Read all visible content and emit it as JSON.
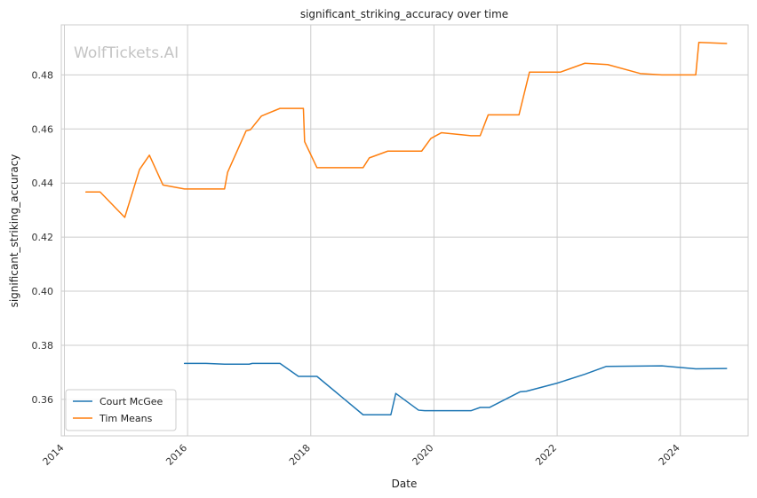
{
  "chart_data": {
    "type": "line",
    "title": "significant_striking_accuracy over time",
    "xlabel": "Date",
    "ylabel": "significant_striking_accuracy",
    "watermark": "WolfTickets.AI",
    "xlim": [
      2013.95,
      2025.1
    ],
    "ylim": [
      0.3465,
      0.4985
    ],
    "x_ticks": [
      2014,
      2016,
      2018,
      2020,
      2022,
      2024
    ],
    "x_tick_labels": [
      "2014",
      "2016",
      "2018",
      "2020",
      "2022",
      "2024"
    ],
    "y_ticks": [
      0.36,
      0.38,
      0.4,
      0.42,
      0.44,
      0.46,
      0.48
    ],
    "y_tick_labels": [
      "0.36",
      "0.38",
      "0.40",
      "0.42",
      "0.44",
      "0.46",
      "0.48"
    ],
    "grid": true,
    "legend_position": "lower-left",
    "series": [
      {
        "name": "Court McGee",
        "color": "#1f77b4",
        "points": [
          [
            2015.95,
            0.3733
          ],
          [
            2016.3,
            0.3733
          ],
          [
            2016.6,
            0.373
          ],
          [
            2017.0,
            0.373
          ],
          [
            2017.05,
            0.3733
          ],
          [
            2017.5,
            0.3733
          ],
          [
            2017.8,
            0.3685
          ],
          [
            2018.1,
            0.3685
          ],
          [
            2018.85,
            0.3543
          ],
          [
            2019.3,
            0.3543
          ],
          [
            2019.38,
            0.3622
          ],
          [
            2019.75,
            0.356
          ],
          [
            2019.85,
            0.3558
          ],
          [
            2020.6,
            0.3558
          ],
          [
            2020.75,
            0.357
          ],
          [
            2020.9,
            0.357
          ],
          [
            2021.4,
            0.3628
          ],
          [
            2021.5,
            0.363
          ],
          [
            2022.0,
            0.366
          ],
          [
            2022.45,
            0.3693
          ],
          [
            2022.8,
            0.3722
          ],
          [
            2023.7,
            0.3724
          ],
          [
            2024.25,
            0.3713
          ],
          [
            2024.75,
            0.3714
          ]
        ]
      },
      {
        "name": "Tim Means",
        "color": "#ff7f0e",
        "points": [
          [
            2014.35,
            0.4367
          ],
          [
            2014.58,
            0.4367
          ],
          [
            2014.98,
            0.4273
          ],
          [
            2015.22,
            0.445
          ],
          [
            2015.38,
            0.4503
          ],
          [
            2015.6,
            0.4393
          ],
          [
            2015.95,
            0.4378
          ],
          [
            2016.6,
            0.4378
          ],
          [
            2016.65,
            0.444
          ],
          [
            2016.95,
            0.4593
          ],
          [
            2017.02,
            0.4597
          ],
          [
            2017.2,
            0.4648
          ],
          [
            2017.5,
            0.4676
          ],
          [
            2017.88,
            0.4676
          ],
          [
            2017.9,
            0.4553
          ],
          [
            2018.1,
            0.4457
          ],
          [
            2018.85,
            0.4457
          ],
          [
            2018.95,
            0.4493
          ],
          [
            2019.25,
            0.4518
          ],
          [
            2019.8,
            0.4518
          ],
          [
            2019.95,
            0.4565
          ],
          [
            2020.12,
            0.4586
          ],
          [
            2020.6,
            0.4575
          ],
          [
            2020.75,
            0.4575
          ],
          [
            2020.88,
            0.4652
          ],
          [
            2021.38,
            0.4652
          ],
          [
            2021.55,
            0.481
          ],
          [
            2022.05,
            0.481
          ],
          [
            2022.45,
            0.4843
          ],
          [
            2022.82,
            0.4838
          ],
          [
            2023.35,
            0.4805
          ],
          [
            2023.7,
            0.48
          ],
          [
            2024.25,
            0.48
          ],
          [
            2024.3,
            0.492
          ],
          [
            2024.75,
            0.4916
          ]
        ]
      }
    ]
  }
}
